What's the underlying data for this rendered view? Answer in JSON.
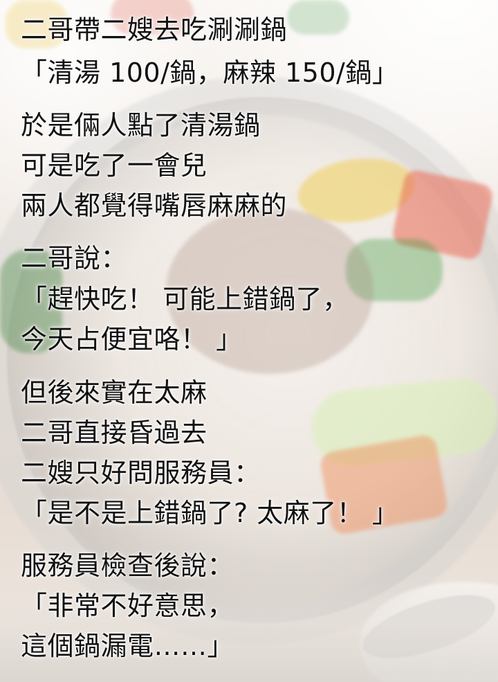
{
  "story": {
    "lines": [
      "二哥帶二嫂去吃涮涮鍋",
      "「清湯 100/鍋，麻辣 150/鍋」",
      "於是倆人點了清湯鍋",
      "可是吃了一會兒",
      "兩人都覺得嘴唇麻麻的",
      "二哥說：",
      "「趕快吃！ 可能上錯鍋了，",
      "今天占便宜咯！ 」",
      "但後來實在太麻",
      "二哥直接昏過去",
      "二嫂只好問服務員：",
      "「是不是上錯鍋了? 太麻了！ 」",
      "服務員檢查後說：",
      "「非常不好意思，",
      "這個鍋漏電……」"
    ]
  }
}
